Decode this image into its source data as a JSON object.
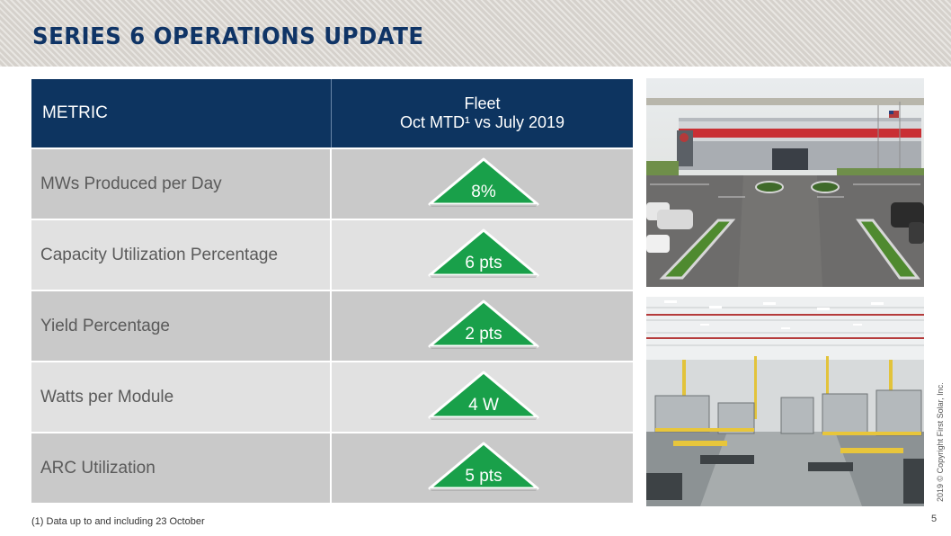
{
  "header": {
    "title": "SERIES 6 OPERATIONS UPDATE"
  },
  "table": {
    "col_metric": "METRIC",
    "col_fleet_line1": "Fleet",
    "col_fleet_line2": "Oct MTD¹ vs July 2019",
    "rows": [
      {
        "metric": "MWs Produced per Day",
        "value": "8%"
      },
      {
        "metric": "Capacity Utilization Percentage",
        "value": "6 pts"
      },
      {
        "metric": "Yield Percentage",
        "value": "2 pts"
      },
      {
        "metric": "Watts per Module",
        "value": "4 W"
      },
      {
        "metric": "ARC Utilization",
        "value": "5 pts"
      }
    ]
  },
  "indicator": {
    "icon": "up-arrow-icon",
    "fill": "#19a04a",
    "border": "#ffffff"
  },
  "colors": {
    "header_navy": "#0d3460",
    "title_blue": "#0f3466",
    "row_dark": "#c9c9c9",
    "row_light": "#e1e1e1"
  },
  "footnote": "(1) Data up to and including 23 October",
  "copyright": "2019 © Copyright First Solar, Inc.",
  "page_number": "5"
}
